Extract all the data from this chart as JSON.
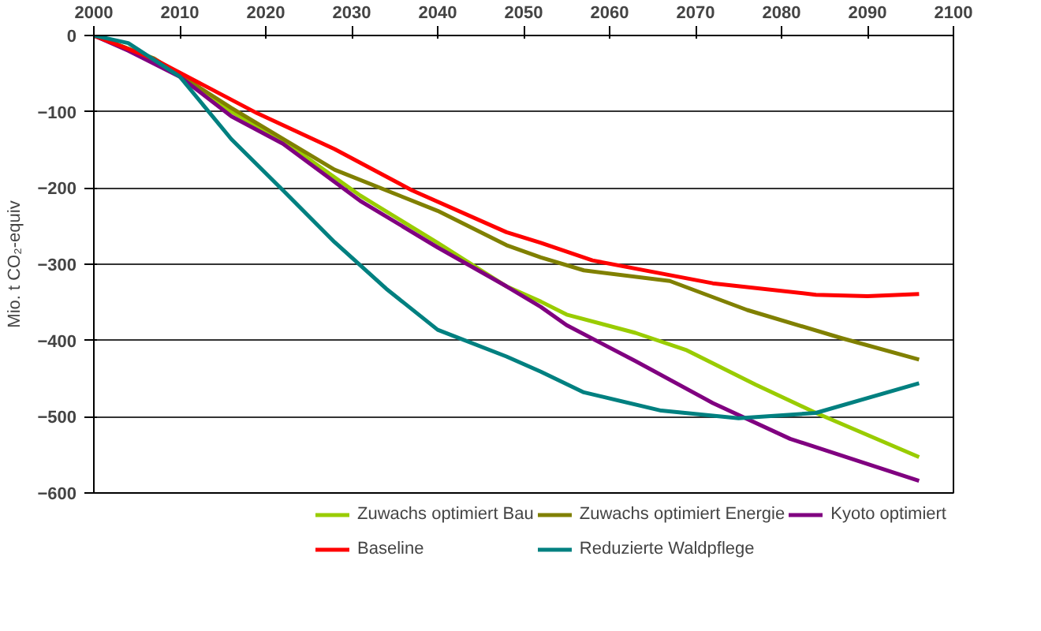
{
  "chart_data": {
    "type": "line",
    "ylabel": "Mio. t CO₂-equiv",
    "xlim": [
      2000,
      2100
    ],
    "xticks": [
      2000,
      2010,
      2020,
      2030,
      2040,
      2050,
      2060,
      2070,
      2080,
      2090,
      2100
    ],
    "ylim": [
      -600,
      0
    ],
    "yticks": [
      0,
      -100,
      -200,
      -300,
      -400,
      -500,
      -600
    ],
    "grid": "y",
    "legend": "bottom",
    "marker": "none",
    "line_style": "solid",
    "series": [
      {
        "name": "Zuwachs optimiert Bau",
        "color": "#99cc00",
        "x": [
          2000,
          2004,
          2010,
          2016,
          2022,
          2031,
          2040,
          2048,
          2052,
          2055,
          2063,
          2069,
          2077,
          2084,
          2096
        ],
        "values": [
          0,
          -18,
          -50,
          -100,
          -138,
          -210,
          -272,
          -329,
          -349,
          -366,
          -390,
          -413,
          -458,
          -495,
          -553
        ]
      },
      {
        "name": "Zuwachs optimiert Energie",
        "color": "#808000",
        "x": [
          2000,
          2007,
          2016,
          2028,
          2040,
          2048,
          2052,
          2057,
          2067,
          2076,
          2087,
          2096
        ],
        "values": [
          0,
          -30,
          -95,
          -176,
          -230,
          -275,
          -291,
          -308,
          -322,
          -360,
          -397,
          -425
        ]
      },
      {
        "name": "Kyoto optimiert",
        "color": "#800080",
        "x": [
          2000,
          2004,
          2010,
          2016,
          2022,
          2031,
          2040,
          2048,
          2052,
          2055,
          2063,
          2072,
          2081,
          2096
        ],
        "values": [
          0,
          -20,
          -54,
          -106,
          -142,
          -217,
          -278,
          -329,
          -356,
          -380,
          -427,
          -482,
          -529,
          -584
        ]
      },
      {
        "name": "Baseline",
        "color": "#ff0000",
        "x": [
          2000,
          2007,
          2019,
          2028,
          2037,
          2048,
          2052,
          2058,
          2072,
          2084,
          2090,
          2096
        ],
        "values": [
          0,
          -31,
          -102,
          -149,
          -203,
          -258,
          -272,
          -295,
          -325,
          -340,
          -342,
          -339
        ]
      },
      {
        "name": "Reduzierte Waldpflege",
        "color": "#008080",
        "x": [
          2000,
          2004,
          2010,
          2016,
          2022,
          2028,
          2034,
          2040,
          2048,
          2052,
          2057,
          2066,
          2075,
          2084,
          2096
        ],
        "values": [
          0,
          -10,
          -54,
          -136,
          -203,
          -271,
          -332,
          -386,
          -421,
          -441,
          -468,
          -492,
          -502,
          -495,
          -456
        ]
      }
    ]
  }
}
